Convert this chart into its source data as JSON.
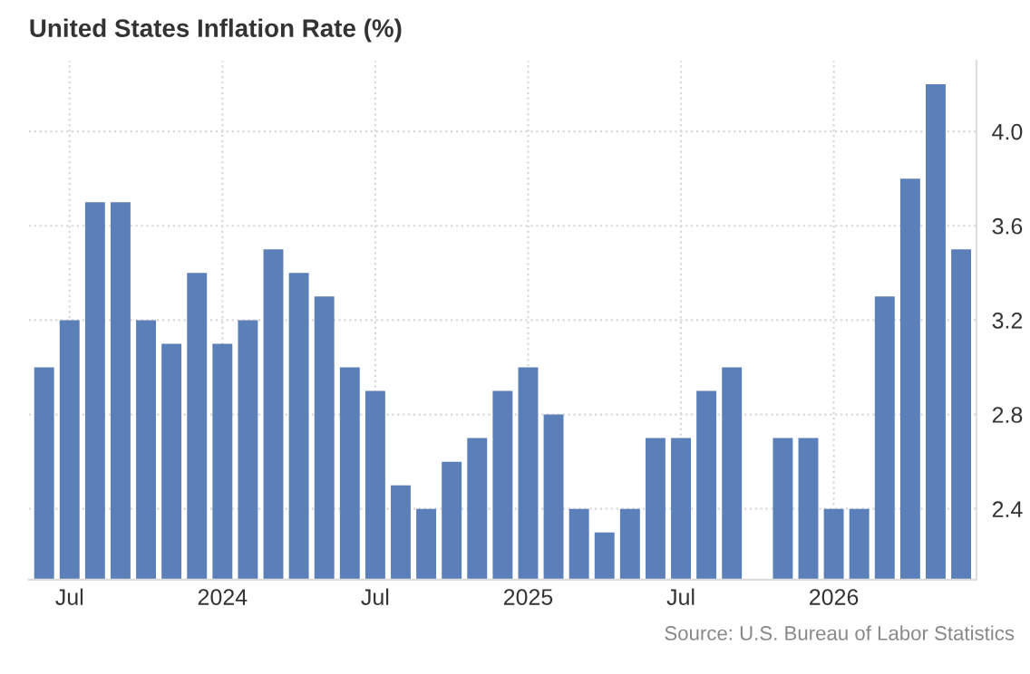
{
  "chart_data": {
    "type": "bar",
    "title": "United States Inflation Rate (%)",
    "categories": [
      null,
      "Jul",
      null,
      null,
      null,
      null,
      null,
      "2024",
      null,
      null,
      null,
      null,
      null,
      "Jul",
      null,
      null,
      null,
      null,
      null,
      "2025",
      null,
      null,
      null,
      null,
      null,
      "Jul",
      null,
      null,
      null,
      null,
      null,
      "2026",
      null,
      null,
      null,
      null,
      null
    ],
    "values": [
      3.0,
      3.2,
      3.7,
      3.7,
      3.2,
      3.1,
      3.4,
      3.1,
      3.2,
      3.5,
      3.4,
      3.3,
      3.0,
      2.9,
      2.5,
      2.4,
      2.6,
      2.7,
      2.9,
      3.0,
      2.8,
      2.4,
      2.3,
      2.4,
      2.7,
      2.7,
      2.9,
      3.0,
      null,
      2.7,
      2.7,
      2.4,
      2.4,
      3.3,
      3.8,
      4.2,
      3.5
    ],
    "color": "#5b7fb8",
    "ylim": [
      2.1,
      4.3
    ],
    "yticks": [
      2.4,
      2.8,
      3.2,
      3.6,
      {
        "value": 4,
        "label": "4.0"
      }
    ],
    "grid": true,
    "annotations": [
      "Source: U.S. Bureau of Labor Statistics"
    ]
  }
}
